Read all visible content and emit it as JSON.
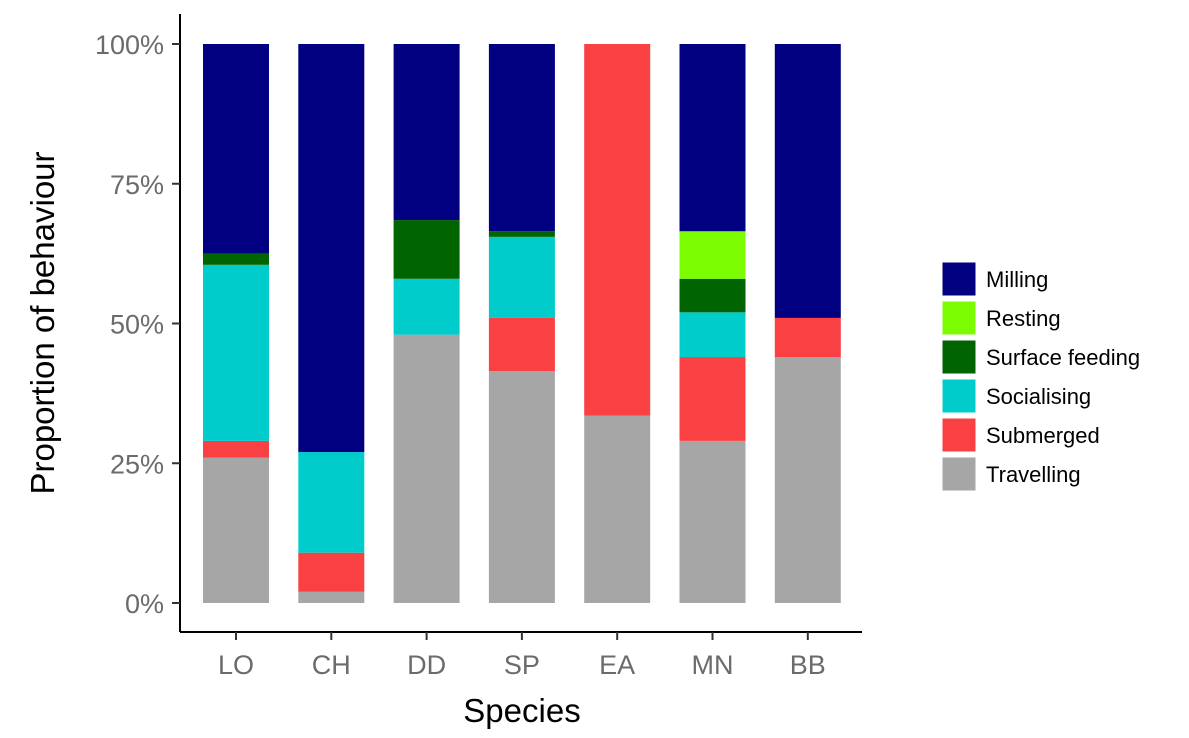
{
  "chart_data": {
    "type": "bar",
    "stacked": true,
    "percent": true,
    "title": "",
    "xlabel": "Species",
    "ylabel": "Proportion of behaviour",
    "categories": [
      "LO",
      "CH",
      "DD",
      "SP",
      "EA",
      "MN",
      "BB"
    ],
    "ylim": [
      0,
      100
    ],
    "yticks": [
      "0%",
      "25%",
      "50%",
      "75%",
      "100%"
    ],
    "ytick_values": [
      0,
      25,
      50,
      75,
      100
    ],
    "grid": false,
    "legend_position": "right",
    "series": [
      {
        "name": "Travelling",
        "color": "#a6a6a6",
        "values": [
          26,
          2,
          48,
          41.5,
          33.5,
          29,
          44
        ]
      },
      {
        "name": "Submerged",
        "color": "#f94144",
        "values": [
          3,
          7,
          0,
          9.5,
          66.5,
          15,
          7
        ]
      },
      {
        "name": "Socialising",
        "color": "#00cccc",
        "values": [
          31.5,
          18,
          10,
          14.5,
          0,
          8,
          0
        ]
      },
      {
        "name": "Surface feeding",
        "color": "#006400",
        "values": [
          2,
          0,
          10.5,
          1,
          0,
          6,
          0
        ]
      },
      {
        "name": "Resting",
        "color": "#7cfc00",
        "values": [
          0,
          0,
          0,
          0,
          0,
          8.5,
          0
        ]
      },
      {
        "name": "Milling",
        "color": "#000080",
        "values": [
          37.5,
          73,
          31.5,
          33.5,
          0,
          33.5,
          49
        ]
      }
    ],
    "legend_order": [
      "Milling",
      "Resting",
      "Surface feeding",
      "Socialising",
      "Submerged",
      "Travelling"
    ]
  }
}
